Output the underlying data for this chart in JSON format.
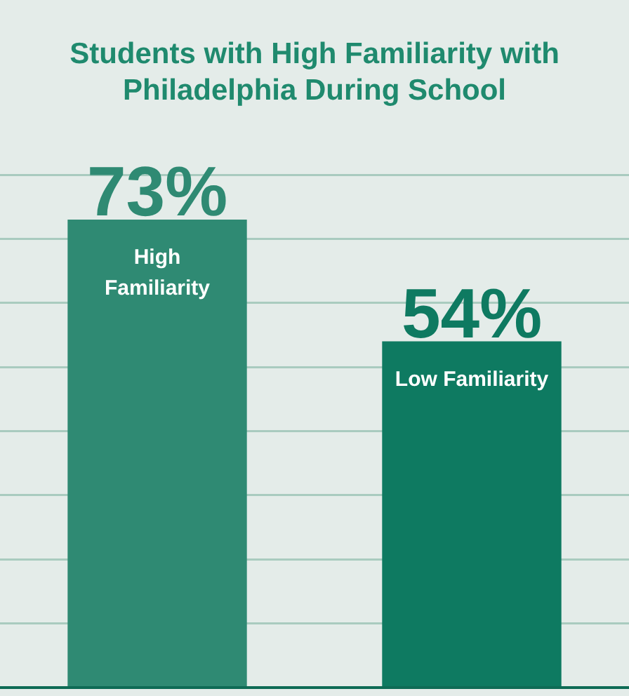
{
  "chart_data": {
    "type": "bar",
    "title": "Students with High Familiarity with Philadelphia During School",
    "categories": [
      "High Familiarity",
      "Low Familiarity"
    ],
    "values": [
      73,
      54
    ],
    "value_labels": [
      "73%",
      "54%"
    ],
    "colors": [
      "#2f8a73",
      "#0e7a61"
    ],
    "ylim": [
      0,
      80
    ],
    "yticks": [
      {
        "value": 0,
        "label": null
      },
      {
        "value": 10,
        "label": null
      },
      {
        "value": 20,
        "label": null
      },
      {
        "value": 30,
        "label": null
      },
      {
        "value": 40,
        "label": null
      },
      {
        "value": 50,
        "label": null
      },
      {
        "value": 60,
        "label": null
      },
      {
        "value": 70,
        "label": null
      },
      {
        "value": 80,
        "label": null
      }
    ],
    "grid": "y",
    "tick_labels": false,
    "legend": false
  }
}
